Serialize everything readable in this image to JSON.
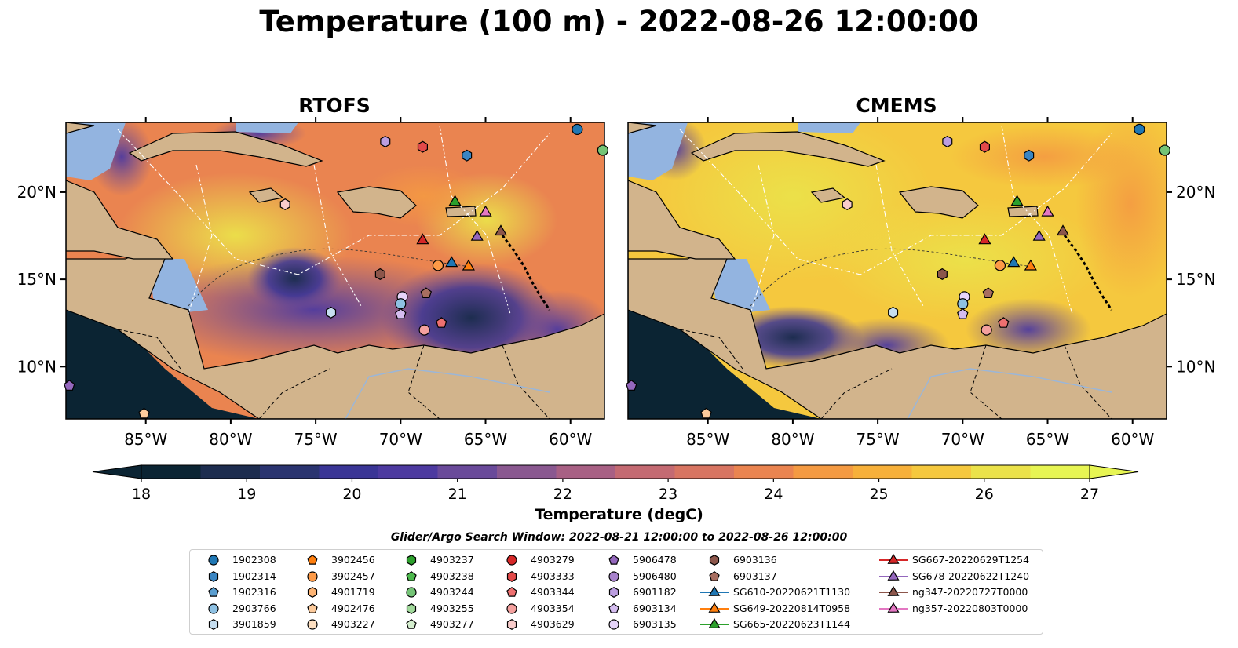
{
  "title": "Temperature (100 m) - 2022-08-26 12:00:00",
  "panels": [
    {
      "title": "RTOFS"
    },
    {
      "title": "CMEMS"
    }
  ],
  "axes": {
    "lon_ticks": [
      "85°W",
      "80°W",
      "75°W",
      "70°W",
      "65°W",
      "60°W"
    ],
    "lat_ticks": [
      "20°N",
      "15°N",
      "10°N"
    ],
    "lon_values": [
      -85,
      -80,
      -75,
      -70,
      -65,
      -60
    ],
    "lat_values": [
      20,
      15,
      10
    ],
    "lon_range": [
      -89.7,
      -58.0
    ],
    "lat_range": [
      7.0,
      24.0
    ]
  },
  "colorbar": {
    "label": "Temperature (degC)",
    "ticks": [
      "18",
      "19",
      "20",
      "21",
      "22",
      "23",
      "24",
      "25",
      "26",
      "27"
    ],
    "range": [
      18,
      27
    ],
    "extend": "both",
    "colors": [
      "#0b2433",
      "#1d2d4f",
      "#2a3470",
      "#3a3596",
      "#4d3aa0",
      "#6a4a9a",
      "#8a5890",
      "#a86084",
      "#c46a72",
      "#d87562",
      "#ea8450",
      "#f49a42",
      "#f7b03a",
      "#f5c83e",
      "#ebe24a",
      "#e7f553"
    ]
  },
  "search_window": "Glider/Argo Search Window: 2022-08-21 12:00:00 to 2022-08-26 12:00:00",
  "legend": [
    {
      "label": "1902308",
      "marker": "circle",
      "color": "#1f77b4"
    },
    {
      "label": "1902314",
      "marker": "hexagon",
      "color": "#3a85c2"
    },
    {
      "label": "1902316",
      "marker": "pentagon",
      "color": "#5a9ed0"
    },
    {
      "label": "2903766",
      "marker": "circle",
      "color": "#8ec1e3"
    },
    {
      "label": "3901859",
      "marker": "hexagon",
      "color": "#c6def0"
    },
    {
      "label": "3902456",
      "marker": "pentagon",
      "color": "#ff7f0e"
    },
    {
      "label": "3902457",
      "marker": "circle",
      "color": "#fd9a47"
    },
    {
      "label": "4901719",
      "marker": "hexagon",
      "color": "#fdb474"
    },
    {
      "label": "4902476",
      "marker": "pentagon",
      "color": "#fdcb9c"
    },
    {
      "label": "4903227",
      "marker": "circle",
      "color": "#fee0c2"
    },
    {
      "label": "4903237",
      "marker": "hexagon",
      "color": "#2ca02c"
    },
    {
      "label": "4903238",
      "marker": "pentagon",
      "color": "#4cb84c"
    },
    {
      "label": "4903244",
      "marker": "circle",
      "color": "#74c476"
    },
    {
      "label": "4903255",
      "marker": "hexagon",
      "color": "#a1d99b"
    },
    {
      "label": "4903277",
      "marker": "pentagon",
      "color": "#d5efcf"
    },
    {
      "label": "4903279",
      "marker": "circle",
      "color": "#d62728"
    },
    {
      "label": "4903333",
      "marker": "hexagon",
      "color": "#e34a4a"
    },
    {
      "label": "4903344",
      "marker": "pentagon",
      "color": "#ee7070"
    },
    {
      "label": "4903354",
      "marker": "circle",
      "color": "#f4a09e"
    },
    {
      "label": "4903629",
      "marker": "hexagon",
      "color": "#f9cccb"
    },
    {
      "label": "5906478",
      "marker": "pentagon",
      "color": "#9467bd"
    },
    {
      "label": "5906480",
      "marker": "circle",
      "color": "#a882cc"
    },
    {
      "label": "6901182",
      "marker": "hexagon",
      "color": "#bc9ee0"
    },
    {
      "label": "6903134",
      "marker": "pentagon",
      "color": "#d5bdf0"
    },
    {
      "label": "6903135",
      "marker": "circle",
      "color": "#e6d4fa"
    },
    {
      "label": "6903136",
      "marker": "hexagon",
      "color": "#8c564b"
    },
    {
      "label": "6903137",
      "marker": "pentagon",
      "color": "#a86e60"
    },
    {
      "label": "SG610-20220621T1130",
      "marker": "triangle",
      "color": "#1f77b4"
    },
    {
      "label": "SG649-20220814T0958",
      "marker": "triangle",
      "color": "#ff7f0e"
    },
    {
      "label": "SG665-20220623T1144",
      "marker": "triangle",
      "color": "#2ca02c"
    },
    {
      "label": "SG667-20220629T1254",
      "marker": "triangle",
      "color": "#d62728"
    },
    {
      "label": "SG678-20220622T1240",
      "marker": "triangle",
      "color": "#9467bd"
    },
    {
      "label": "ng347-20220727T0000",
      "marker": "triangle",
      "color": "#8c564b"
    },
    {
      "label": "ng357-20220803T0000",
      "marker": "triangle",
      "color": "#e377c2"
    }
  ],
  "observations": [
    {
      "id": "1902308",
      "lon": -59.6,
      "lat": 23.6
    },
    {
      "id": "1902314",
      "lon": -66.1,
      "lat": 22.1
    },
    {
      "id": "6901182",
      "lon": -70.9,
      "lat": 22.9
    },
    {
      "id": "4903333",
      "lon": -68.7,
      "lat": 22.6
    },
    {
      "id": "4903244",
      "lon": -58.1,
      "lat": 22.4
    },
    {
      "id": "4903629",
      "lon": -76.8,
      "lat": 19.3
    },
    {
      "id": "SG665-20220623T1144",
      "lon": -66.8,
      "lat": 19.5
    },
    {
      "id": "ng357-20220803T0000",
      "lon": -65.0,
      "lat": 18.9
    },
    {
      "id": "ng347-20220727T0000",
      "lon": -64.1,
      "lat": 17.8
    },
    {
      "id": "SG678-20220622T1240",
      "lon": -65.5,
      "lat": 17.5
    },
    {
      "id": "SG667-20220629T1254",
      "lon": -68.7,
      "lat": 17.3
    },
    {
      "id": "SG610-20220621T1130",
      "lon": -67.0,
      "lat": 16.0
    },
    {
      "id": "3902457",
      "lon": -67.8,
      "lat": 15.8
    },
    {
      "id": "SG649-20220814T0958",
      "lon": -66.0,
      "lat": 15.8
    },
    {
      "id": "6903136",
      "lon": -71.2,
      "lat": 15.3
    },
    {
      "id": "6903137",
      "lon": -68.5,
      "lat": 14.2
    },
    {
      "id": "6903135",
      "lon": -69.9,
      "lat": 14.0
    },
    {
      "id": "2903766",
      "lon": -70.0,
      "lat": 13.6
    },
    {
      "id": "3901859",
      "lon": -74.1,
      "lat": 13.1
    },
    {
      "id": "6903134",
      "lon": -70.0,
      "lat": 13.0
    },
    {
      "id": "4903344",
      "lon": -67.6,
      "lat": 12.5
    },
    {
      "id": "4903354",
      "lon": -68.6,
      "lat": 12.1
    },
    {
      "id": "5906478",
      "lon": -89.5,
      "lat": 8.9
    },
    {
      "id": "4902476",
      "lon": -85.1,
      "lat": 7.3
    }
  ]
}
